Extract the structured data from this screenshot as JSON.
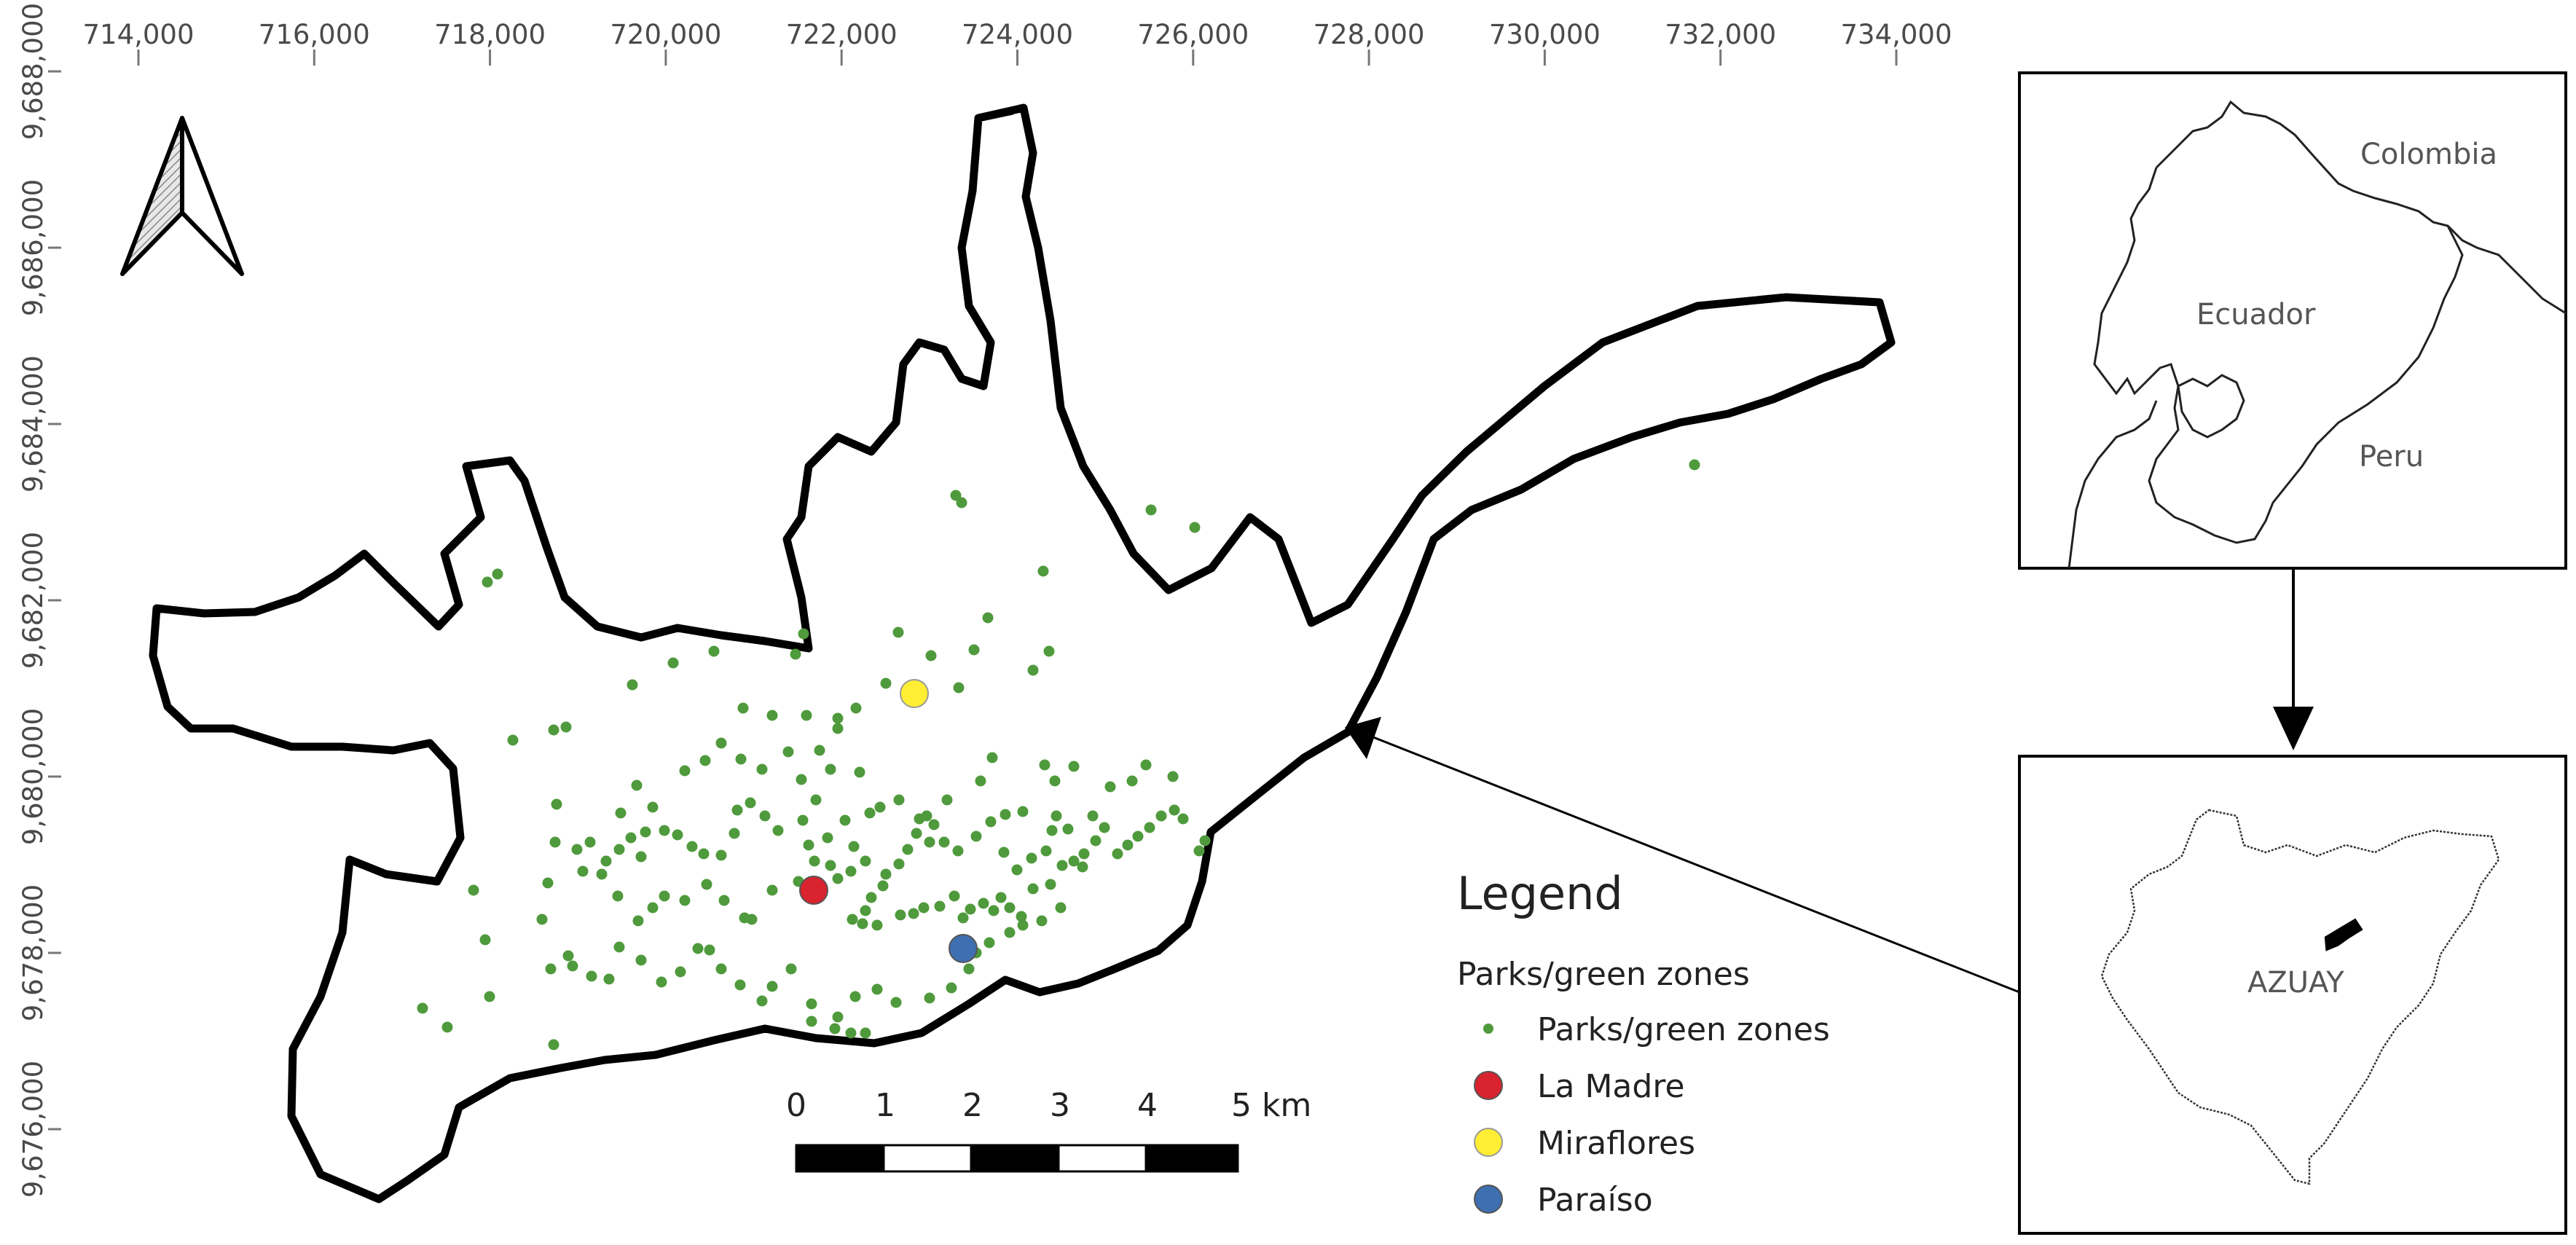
{
  "map": {
    "x_axis": {
      "unit": "easting",
      "ticks": [
        "714,000",
        "716,000",
        "718,000",
        "720,000",
        "722,000",
        "724,000",
        "726,000",
        "728,000",
        "730,000",
        "732,000",
        "734,000"
      ]
    },
    "y_axis": {
      "unit": "northing",
      "ticks": [
        "9,688,000",
        "9,686,000",
        "9,684,000",
        "9,682,000",
        "9,680,000",
        "9,678,000",
        "9,676,000"
      ]
    },
    "north_arrow_icon": "north-arrow-icon"
  },
  "scale_bar": {
    "labels": [
      "0",
      "1",
      "2",
      "3",
      "4",
      "5 km"
    ]
  },
  "legend": {
    "title": "Legend",
    "subtitle": "Parks/green zones",
    "items": [
      {
        "label": "Parks/green zones",
        "color": "#4f9a3c",
        "marker": "small-dot"
      },
      {
        "label": "La Madre",
        "color": "#d9232e",
        "marker": "large-dot"
      },
      {
        "label": "Miraflores",
        "color": "#ffee33",
        "marker": "large-dot"
      },
      {
        "label": "Paraíso",
        "color": "#3e6fb0",
        "marker": "large-dot"
      }
    ]
  },
  "inset_country": {
    "labels": {
      "colombia": "Colombia",
      "ecuador": "Ecuador",
      "peru": "Peru"
    }
  },
  "inset_province": {
    "label": "AZUAY"
  },
  "colors": {
    "boundary": "#000000",
    "green_point": "#4f9a3c",
    "la_madre": "#d9232e",
    "miraflores": "#ffee33",
    "paraiso": "#3e6fb0"
  }
}
